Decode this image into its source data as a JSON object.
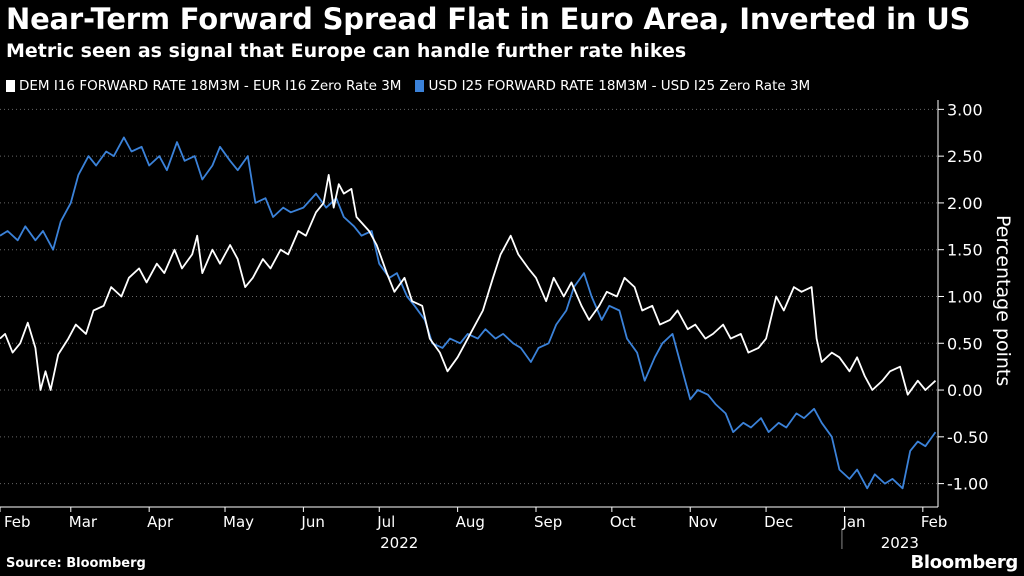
{
  "title": "Near-Term Forward Spread Flat in Euro Area, Inverted in US",
  "subtitle": "Metric seen as signal that Europe can handle further rate hikes",
  "source": "Source: Bloomberg",
  "brand": "Bloomberg",
  "colors": {
    "background": "#000000",
    "dem": "#ffffff",
    "usd": "#3b82d9",
    "grid": "#666666"
  },
  "chart_data": {
    "type": "line",
    "ylabel": "Percentage points",
    "ylim": [
      -1.25,
      3.1
    ],
    "yticks": [
      -1.0,
      -0.5,
      0.0,
      0.5,
      1.0,
      1.5,
      2.0,
      2.5,
      3.0
    ],
    "ytick_labels": [
      "-1.00",
      "-0.50",
      "0.00",
      "0.50",
      "1.00",
      "1.50",
      "2.00",
      "2.50",
      "3.00"
    ],
    "x_range": [
      "2022-02-01",
      "2023-02-07"
    ],
    "xticks": [
      {
        "date": "2022-02-01",
        "label": "Feb"
      },
      {
        "date": "2022-03-01",
        "label": "Mar"
      },
      {
        "date": "2022-04-01",
        "label": "Apr"
      },
      {
        "date": "2022-05-01",
        "label": "May"
      },
      {
        "date": "2022-06-01",
        "label": "Jun"
      },
      {
        "date": "2022-07-01",
        "label": "Jul"
      },
      {
        "date": "2022-08-01",
        "label": "Aug"
      },
      {
        "date": "2022-09-01",
        "label": "Sep"
      },
      {
        "date": "2022-10-01",
        "label": "Oct"
      },
      {
        "date": "2022-11-01",
        "label": "Nov"
      },
      {
        "date": "2022-12-01",
        "label": "Dec"
      },
      {
        "date": "2023-01-01",
        "label": "Jan"
      },
      {
        "date": "2023-02-01",
        "label": "Feb"
      }
    ],
    "year_labels": [
      {
        "date": "2022-07-01",
        "label": "2022"
      },
      {
        "date": "2023-01-15",
        "label": "2023"
      }
    ],
    "year_divider": "2022-12-31",
    "grid": true,
    "legend_position": "top-left",
    "series": [
      {
        "name": "DEM I16 FORWARD RATE 18M3M - EUR I16 Zero Rate 3M",
        "color": "#ffffff",
        "points": [
          [
            "2022-02-01",
            0.55
          ],
          [
            "2022-02-03",
            0.6
          ],
          [
            "2022-02-06",
            0.4
          ],
          [
            "2022-02-09",
            0.5
          ],
          [
            "2022-02-12",
            0.72
          ],
          [
            "2022-02-15",
            0.45
          ],
          [
            "2022-02-17",
            0.0
          ],
          [
            "2022-02-19",
            0.2
          ],
          [
            "2022-02-21",
            0.0
          ],
          [
            "2022-02-24",
            0.38
          ],
          [
            "2022-02-28",
            0.55
          ],
          [
            "2022-03-03",
            0.7
          ],
          [
            "2022-03-07",
            0.6
          ],
          [
            "2022-03-10",
            0.85
          ],
          [
            "2022-03-14",
            0.9
          ],
          [
            "2022-03-17",
            1.1
          ],
          [
            "2022-03-21",
            1.0
          ],
          [
            "2022-03-24",
            1.2
          ],
          [
            "2022-03-28",
            1.3
          ],
          [
            "2022-03-31",
            1.15
          ],
          [
            "2022-04-04",
            1.35
          ],
          [
            "2022-04-07",
            1.25
          ],
          [
            "2022-04-11",
            1.5
          ],
          [
            "2022-04-14",
            1.3
          ],
          [
            "2022-04-18",
            1.45
          ],
          [
            "2022-04-20",
            1.65
          ],
          [
            "2022-04-22",
            1.25
          ],
          [
            "2022-04-26",
            1.5
          ],
          [
            "2022-04-29",
            1.35
          ],
          [
            "2022-05-03",
            1.55
          ],
          [
            "2022-05-06",
            1.4
          ],
          [
            "2022-05-09",
            1.1
          ],
          [
            "2022-05-12",
            1.2
          ],
          [
            "2022-05-16",
            1.4
          ],
          [
            "2022-05-19",
            1.3
          ],
          [
            "2022-05-23",
            1.5
          ],
          [
            "2022-05-26",
            1.45
          ],
          [
            "2022-05-30",
            1.7
          ],
          [
            "2022-06-02",
            1.65
          ],
          [
            "2022-06-06",
            1.9
          ],
          [
            "2022-06-09",
            2.0
          ],
          [
            "2022-06-11",
            2.3
          ],
          [
            "2022-06-13",
            1.95
          ],
          [
            "2022-06-15",
            2.2
          ],
          [
            "2022-06-17",
            2.1
          ],
          [
            "2022-06-20",
            2.15
          ],
          [
            "2022-06-22",
            1.85
          ],
          [
            "2022-06-27",
            1.7
          ],
          [
            "2022-06-30",
            1.55
          ],
          [
            "2022-07-04",
            1.25
          ],
          [
            "2022-07-07",
            1.05
          ],
          [
            "2022-07-11",
            1.2
          ],
          [
            "2022-07-14",
            0.95
          ],
          [
            "2022-07-18",
            0.9
          ],
          [
            "2022-07-21",
            0.55
          ],
          [
            "2022-07-25",
            0.4
          ],
          [
            "2022-07-28",
            0.2
          ],
          [
            "2022-08-01",
            0.35
          ],
          [
            "2022-08-04",
            0.5
          ],
          [
            "2022-08-08",
            0.7
          ],
          [
            "2022-08-11",
            0.85
          ],
          [
            "2022-08-15",
            1.2
          ],
          [
            "2022-08-18",
            1.45
          ],
          [
            "2022-08-22",
            1.65
          ],
          [
            "2022-08-25",
            1.45
          ],
          [
            "2022-08-29",
            1.3
          ],
          [
            "2022-09-01",
            1.2
          ],
          [
            "2022-09-05",
            0.95
          ],
          [
            "2022-09-08",
            1.2
          ],
          [
            "2022-09-12",
            1.0
          ],
          [
            "2022-09-15",
            1.15
          ],
          [
            "2022-09-19",
            0.9
          ],
          [
            "2022-09-22",
            0.75
          ],
          [
            "2022-09-26",
            0.9
          ],
          [
            "2022-09-29",
            1.05
          ],
          [
            "2022-10-03",
            1.0
          ],
          [
            "2022-10-06",
            1.2
          ],
          [
            "2022-10-10",
            1.1
          ],
          [
            "2022-10-13",
            0.85
          ],
          [
            "2022-10-17",
            0.9
          ],
          [
            "2022-10-20",
            0.7
          ],
          [
            "2022-10-24",
            0.75
          ],
          [
            "2022-10-27",
            0.85
          ],
          [
            "2022-10-31",
            0.65
          ],
          [
            "2022-11-03",
            0.7
          ],
          [
            "2022-11-07",
            0.55
          ],
          [
            "2022-11-10",
            0.6
          ],
          [
            "2022-11-14",
            0.7
          ],
          [
            "2022-11-17",
            0.55
          ],
          [
            "2022-11-21",
            0.6
          ],
          [
            "2022-11-24",
            0.4
          ],
          [
            "2022-11-28",
            0.45
          ],
          [
            "2022-12-01",
            0.55
          ],
          [
            "2022-12-05",
            1.0
          ],
          [
            "2022-12-08",
            0.85
          ],
          [
            "2022-12-12",
            1.1
          ],
          [
            "2022-12-15",
            1.05
          ],
          [
            "2022-12-19",
            1.1
          ],
          [
            "2022-12-21",
            0.55
          ],
          [
            "2022-12-23",
            0.3
          ],
          [
            "2022-12-27",
            0.4
          ],
          [
            "2022-12-30",
            0.35
          ],
          [
            "2023-01-03",
            0.2
          ],
          [
            "2023-01-06",
            0.35
          ],
          [
            "2023-01-09",
            0.15
          ],
          [
            "2023-01-12",
            0.0
          ],
          [
            "2023-01-16",
            0.1
          ],
          [
            "2023-01-19",
            0.2
          ],
          [
            "2023-01-23",
            0.25
          ],
          [
            "2023-01-26",
            -0.05
          ],
          [
            "2023-01-30",
            0.1
          ],
          [
            "2023-02-02",
            0.0
          ],
          [
            "2023-02-06",
            0.1
          ]
        ]
      },
      {
        "name": "USD I25 FORWARD RATE 18M3M - USD I25 Zero Rate 3M",
        "color": "#3b82d9",
        "points": [
          [
            "2022-02-01",
            1.65
          ],
          [
            "2022-02-04",
            1.7
          ],
          [
            "2022-02-08",
            1.6
          ],
          [
            "2022-02-11",
            1.75
          ],
          [
            "2022-02-15",
            1.6
          ],
          [
            "2022-02-18",
            1.7
          ],
          [
            "2022-02-22",
            1.5
          ],
          [
            "2022-02-25",
            1.8
          ],
          [
            "2022-03-01",
            2.0
          ],
          [
            "2022-03-04",
            2.3
          ],
          [
            "2022-03-08",
            2.5
          ],
          [
            "2022-03-11",
            2.4
          ],
          [
            "2022-03-15",
            2.55
          ],
          [
            "2022-03-18",
            2.5
          ],
          [
            "2022-03-22",
            2.7
          ],
          [
            "2022-03-25",
            2.55
          ],
          [
            "2022-03-29",
            2.6
          ],
          [
            "2022-04-01",
            2.4
          ],
          [
            "2022-04-05",
            2.5
          ],
          [
            "2022-04-08",
            2.35
          ],
          [
            "2022-04-12",
            2.65
          ],
          [
            "2022-04-15",
            2.45
          ],
          [
            "2022-04-19",
            2.5
          ],
          [
            "2022-04-22",
            2.25
          ],
          [
            "2022-04-26",
            2.4
          ],
          [
            "2022-04-29",
            2.6
          ],
          [
            "2022-05-03",
            2.45
          ],
          [
            "2022-05-06",
            2.35
          ],
          [
            "2022-05-10",
            2.5
          ],
          [
            "2022-05-13",
            2.0
          ],
          [
            "2022-05-17",
            2.05
          ],
          [
            "2022-05-20",
            1.85
          ],
          [
            "2022-05-24",
            1.95
          ],
          [
            "2022-05-27",
            1.9
          ],
          [
            "2022-06-01",
            1.95
          ],
          [
            "2022-06-06",
            2.1
          ],
          [
            "2022-06-10",
            1.95
          ],
          [
            "2022-06-14",
            2.05
          ],
          [
            "2022-06-17",
            1.85
          ],
          [
            "2022-06-21",
            1.75
          ],
          [
            "2022-06-24",
            1.65
          ],
          [
            "2022-06-28",
            1.7
          ],
          [
            "2022-07-01",
            1.35
          ],
          [
            "2022-07-05",
            1.2
          ],
          [
            "2022-07-08",
            1.25
          ],
          [
            "2022-07-12",
            1.0
          ],
          [
            "2022-07-15",
            0.9
          ],
          [
            "2022-07-19",
            0.75
          ],
          [
            "2022-07-22",
            0.5
          ],
          [
            "2022-07-26",
            0.45
          ],
          [
            "2022-07-29",
            0.55
          ],
          [
            "2022-08-02",
            0.5
          ],
          [
            "2022-08-05",
            0.6
          ],
          [
            "2022-08-09",
            0.55
          ],
          [
            "2022-08-12",
            0.65
          ],
          [
            "2022-08-16",
            0.55
          ],
          [
            "2022-08-19",
            0.6
          ],
          [
            "2022-08-23",
            0.5
          ],
          [
            "2022-08-26",
            0.45
          ],
          [
            "2022-08-30",
            0.3
          ],
          [
            "2022-09-02",
            0.45
          ],
          [
            "2022-09-06",
            0.5
          ],
          [
            "2022-09-09",
            0.7
          ],
          [
            "2022-09-13",
            0.85
          ],
          [
            "2022-09-16",
            1.1
          ],
          [
            "2022-09-20",
            1.25
          ],
          [
            "2022-09-23",
            1.0
          ],
          [
            "2022-09-27",
            0.75
          ],
          [
            "2022-09-30",
            0.9
          ],
          [
            "2022-10-04",
            0.85
          ],
          [
            "2022-10-07",
            0.55
          ],
          [
            "2022-10-11",
            0.4
          ],
          [
            "2022-10-14",
            0.1
          ],
          [
            "2022-10-18",
            0.35
          ],
          [
            "2022-10-21",
            0.5
          ],
          [
            "2022-10-25",
            0.6
          ],
          [
            "2022-10-28",
            0.3
          ],
          [
            "2022-11-01",
            -0.1
          ],
          [
            "2022-11-04",
            0.0
          ],
          [
            "2022-11-08",
            -0.05
          ],
          [
            "2022-11-11",
            -0.15
          ],
          [
            "2022-11-15",
            -0.25
          ],
          [
            "2022-11-18",
            -0.45
          ],
          [
            "2022-11-22",
            -0.35
          ],
          [
            "2022-11-25",
            -0.4
          ],
          [
            "2022-11-29",
            -0.3
          ],
          [
            "2022-12-02",
            -0.45
          ],
          [
            "2022-12-06",
            -0.35
          ],
          [
            "2022-12-09",
            -0.4
          ],
          [
            "2022-12-13",
            -0.25
          ],
          [
            "2022-12-16",
            -0.3
          ],
          [
            "2022-12-20",
            -0.2
          ],
          [
            "2022-12-23",
            -0.35
          ],
          [
            "2022-12-27",
            -0.5
          ],
          [
            "2022-12-30",
            -0.85
          ],
          [
            "2023-01-03",
            -0.95
          ],
          [
            "2023-01-06",
            -0.85
          ],
          [
            "2023-01-10",
            -1.05
          ],
          [
            "2023-01-13",
            -0.9
          ],
          [
            "2023-01-17",
            -1.0
          ],
          [
            "2023-01-20",
            -0.95
          ],
          [
            "2023-01-24",
            -1.05
          ],
          [
            "2023-01-27",
            -0.65
          ],
          [
            "2023-01-30",
            -0.55
          ],
          [
            "2023-02-02",
            -0.6
          ],
          [
            "2023-02-06",
            -0.45
          ]
        ]
      }
    ]
  }
}
